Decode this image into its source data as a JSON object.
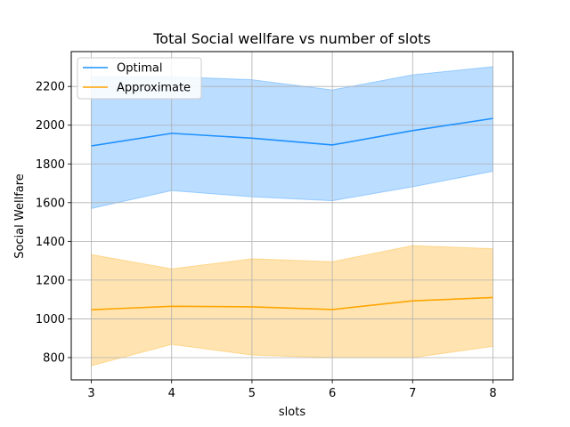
{
  "chart_data": {
    "type": "line",
    "title": "Total Social wellfare vs number of slots",
    "xlabel": "slots",
    "ylabel": "Social Wellfare",
    "x": [
      3,
      4,
      5,
      6,
      7,
      8
    ],
    "xlim": [
      2.75,
      8.25
    ],
    "ylim": [
      685,
      2380
    ],
    "xticks": [
      3,
      4,
      5,
      6,
      7,
      8
    ],
    "yticks": [
      800,
      1000,
      1200,
      1400,
      1600,
      1800,
      2000,
      2200
    ],
    "grid": true,
    "legend_position": "top-left",
    "series": [
      {
        "name": "Optimal",
        "color": "#1e90ff",
        "values": [
          1893,
          1958,
          1933,
          1898,
          1972,
          2035
        ],
        "band_lower": [
          1570,
          1662,
          1630,
          1610,
          1682,
          1762
        ],
        "band_upper": [
          2250,
          2250,
          2235,
          2182,
          2260,
          2302
        ]
      },
      {
        "name": "Approximate",
        "color": "#ffa500",
        "values": [
          1047,
          1065,
          1062,
          1048,
          1093,
          1110
        ],
        "band_lower": [
          758,
          868,
          813,
          800,
          800,
          858
        ],
        "band_upper": [
          1332,
          1258,
          1310,
          1295,
          1378,
          1362
        ]
      }
    ]
  }
}
